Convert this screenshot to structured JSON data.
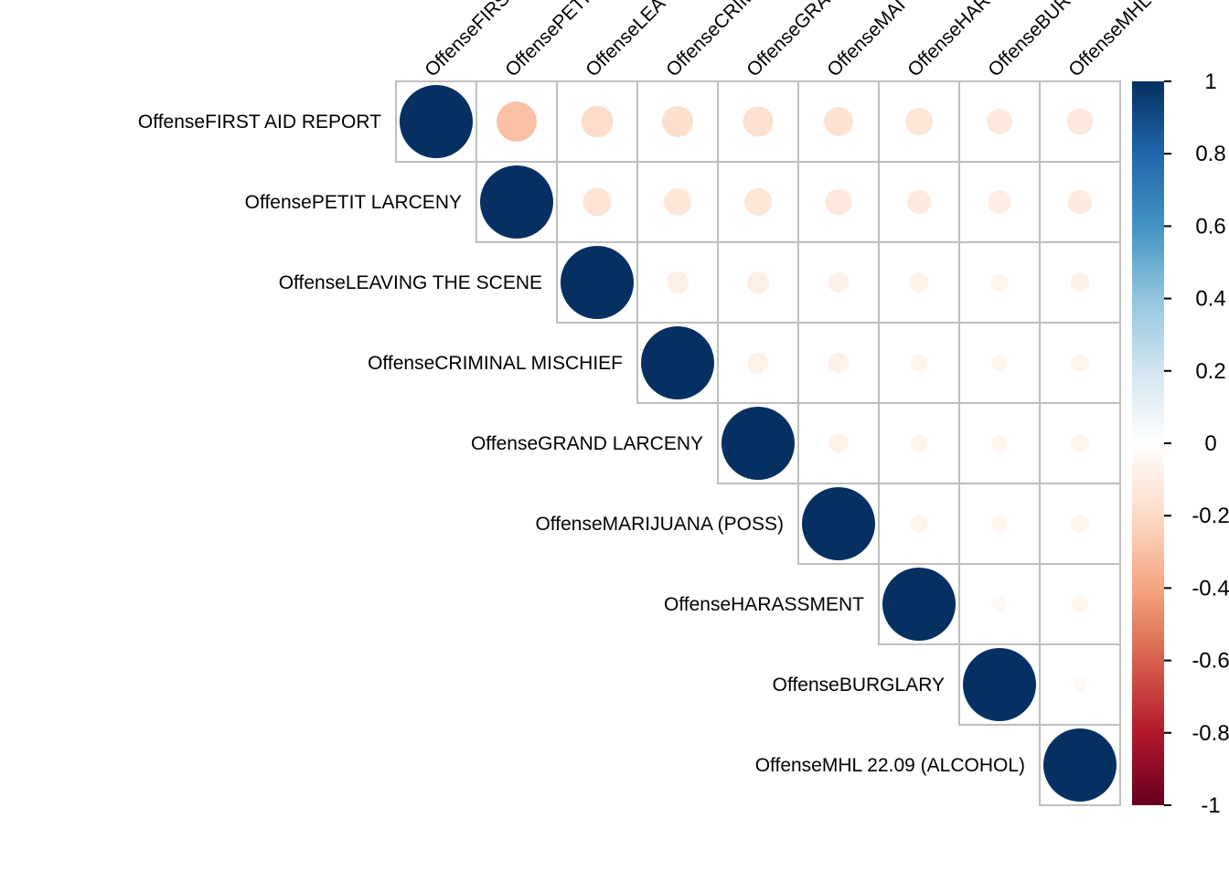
{
  "chart_data": {
    "type": "heatmap",
    "style": "corrplot-circle-upper",
    "title": "",
    "variables": [
      "OffenseFIRST AID REPORT",
      "OffensePETIT LARCENY",
      "OffenseLEAVING THE SCENE",
      "OffenseCRIMINAL MISCHIEF",
      "OffenseGRAND LARCENY",
      "OffenseMARIJUANA (POSS)",
      "OffenseHARASSMENT",
      "OffenseBURGLARY",
      "OffenseMHL 22.09 (ALCOHOL)"
    ],
    "column_labels_visible": [
      "OffenseFIRS",
      "OffensePETI",
      "OffenseLEA",
      "OffenseCRIM",
      "OffenseGRA",
      "OffenseMAI",
      "OffenseHAR",
      "OffenseBUR",
      "OffenseMHL"
    ],
    "matrix": [
      [
        1.0,
        -0.3,
        -0.19,
        -0.18,
        -0.17,
        -0.16,
        -0.14,
        -0.12,
        -0.13
      ],
      [
        null,
        1.0,
        -0.15,
        -0.14,
        -0.14,
        -0.13,
        -0.11,
        -0.1,
        -0.11
      ],
      [
        null,
        null,
        1.0,
        -0.09,
        -0.09,
        -0.08,
        -0.07,
        -0.06,
        -0.07
      ],
      [
        null,
        null,
        null,
        1.0,
        -0.08,
        -0.08,
        -0.06,
        -0.05,
        -0.06
      ],
      [
        null,
        null,
        null,
        null,
        1.0,
        -0.07,
        -0.06,
        -0.05,
        -0.06
      ],
      [
        null,
        null,
        null,
        null,
        null,
        1.0,
        -0.06,
        -0.05,
        -0.06
      ],
      [
        null,
        null,
        null,
        null,
        null,
        null,
        1.0,
        -0.04,
        -0.05
      ],
      [
        null,
        null,
        null,
        null,
        null,
        null,
        null,
        1.0,
        -0.04
      ],
      [
        null,
        null,
        null,
        null,
        null,
        null,
        null,
        null,
        1.0
      ]
    ],
    "colorbar": {
      "range": [
        -1,
        1
      ],
      "tick_labels": [
        "1",
        "0.8",
        "0.6",
        "0.4",
        "0.2",
        "0",
        "-0.2",
        "-0.4",
        "-0.6",
        "-0.8",
        "-1"
      ],
      "tick_values": [
        1,
        0.8,
        0.6,
        0.4,
        0.2,
        0,
        -0.2,
        -0.4,
        -0.6,
        -0.8,
        -1
      ],
      "colors": [
        "#67001F",
        "#B2182B",
        "#D6604D",
        "#F4A582",
        "#FDDBC7",
        "#FFFFFF",
        "#D1E5F0",
        "#92C5DE",
        "#4393C3",
        "#2166AC",
        "#053061"
      ]
    },
    "grid": true,
    "grid_color": "#BEBEBE",
    "legend_placement": "right"
  }
}
